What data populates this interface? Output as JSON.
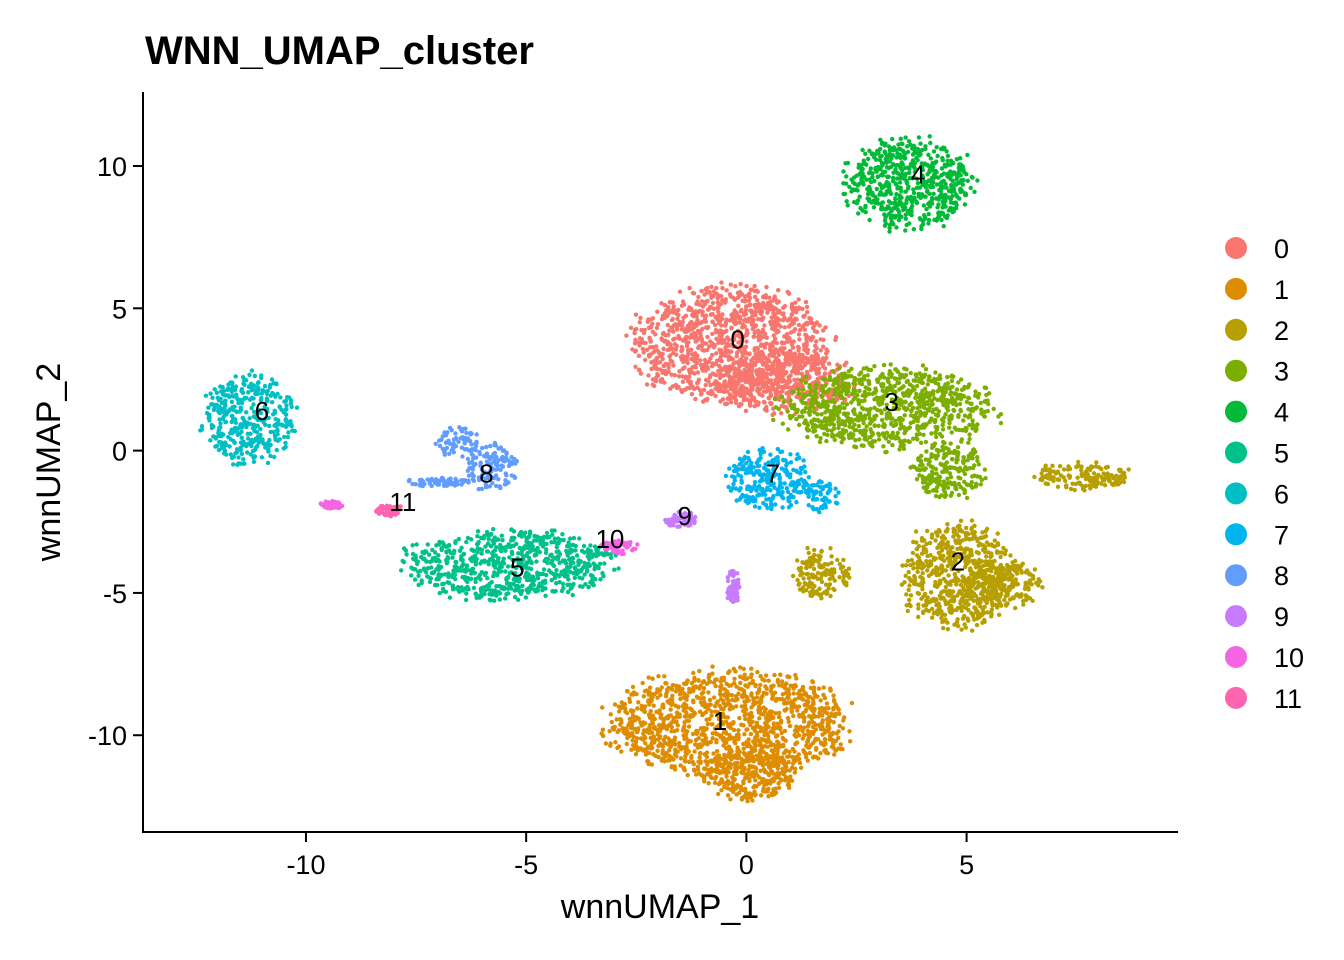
{
  "chart_data": {
    "type": "scatter",
    "title": "WNN_UMAP_cluster",
    "xlabel": "wnnUMAP_1",
    "ylabel": "wnnUMAP_2",
    "xlim": [
      -13.7,
      9.8
    ],
    "ylim": [
      -13.4,
      12.6
    ],
    "x_ticks": [
      -10,
      -5,
      0,
      5
    ],
    "y_ticks": [
      10,
      5,
      0,
      -5,
      -10
    ],
    "x_tick_labels": [
      "-10",
      "-5",
      "0",
      "5"
    ],
    "y_tick_labels": [
      "10",
      "5",
      "0",
      "-5",
      "-10"
    ],
    "grid": false,
    "legend_position": "right",
    "legend": [
      "0",
      "1",
      "2",
      "3",
      "4",
      "5",
      "6",
      "7",
      "8",
      "9",
      "10",
      "11"
    ],
    "colors": [
      "#F8766D",
      "#DE8C00",
      "#B79F00",
      "#7CAE00",
      "#00BA38",
      "#00C08B",
      "#00BFC4",
      "#00B4F0",
      "#619CFF",
      "#C77CFF",
      "#F564E3",
      "#FF64B0"
    ],
    "clusters": [
      {
        "name": "0",
        "label_x": -0.2,
        "label_y": 3.9,
        "blobs": [
          {
            "cx": -0.3,
            "cy": 3.7,
            "rx": 2.2,
            "ry": 2.0
          },
          {
            "cx": 0.9,
            "cy": 2.4,
            "rx": 1.5,
            "ry": 1.1
          }
        ]
      },
      {
        "name": "1",
        "label_x": -0.6,
        "label_y": -9.5,
        "blobs": [
          {
            "cx": -0.4,
            "cy": -9.6,
            "rx": 2.7,
            "ry": 1.8
          },
          {
            "cx": 0.1,
            "cy": -11.3,
            "rx": 1.0,
            "ry": 1.0
          }
        ]
      },
      {
        "name": "2",
        "label_x": 4.8,
        "label_y": -3.9,
        "blobs": [
          {
            "cx": 4.8,
            "cy": -4.4,
            "rx": 1.3,
            "ry": 1.8
          },
          {
            "cx": 5.8,
            "cy": -4.7,
            "rx": 0.9,
            "ry": 0.8
          },
          {
            "cx": 7.6,
            "cy": -0.9,
            "rx": 1.1,
            "ry": 0.5
          },
          {
            "cx": 1.7,
            "cy": -4.3,
            "rx": 0.6,
            "ry": 0.9
          }
        ]
      },
      {
        "name": "3",
        "label_x": 3.3,
        "label_y": 1.7,
        "blobs": [
          {
            "cx": 3.2,
            "cy": 1.5,
            "rx": 2.4,
            "ry": 1.4
          },
          {
            "cx": 4.6,
            "cy": -0.7,
            "rx": 0.8,
            "ry": 1.0
          }
        ]
      },
      {
        "name": "4",
        "label_x": 3.9,
        "label_y": 9.7,
        "blobs": [
          {
            "cx": 3.7,
            "cy": 9.4,
            "rx": 1.4,
            "ry": 1.6
          }
        ]
      },
      {
        "name": "5",
        "label_x": -5.2,
        "label_y": -4.1,
        "blobs": [
          {
            "cx": -5.4,
            "cy": -4.0,
            "rx": 2.3,
            "ry": 1.2
          }
        ]
      },
      {
        "name": "6",
        "label_x": -11.0,
        "label_y": 1.4,
        "blobs": [
          {
            "cx": -11.3,
            "cy": 1.1,
            "rx": 1.0,
            "ry": 1.5
          }
        ]
      },
      {
        "name": "7",
        "label_x": 0.6,
        "label_y": -0.8,
        "blobs": [
          {
            "cx": 0.5,
            "cy": -1.0,
            "rx": 0.9,
            "ry": 1.1
          },
          {
            "cx": 1.7,
            "cy": -1.6,
            "rx": 0.4,
            "ry": 0.5
          }
        ]
      },
      {
        "name": "8",
        "label_x": -5.9,
        "label_y": -0.8,
        "blobs": [
          {
            "cx": -5.8,
            "cy": -0.6,
            "rx": 0.6,
            "ry": 0.8
          },
          {
            "cx": -6.6,
            "cy": 0.3,
            "rx": 0.5,
            "ry": 0.5
          },
          {
            "cx": -7.0,
            "cy": -1.1,
            "rx": 0.7,
            "ry": 0.15
          }
        ]
      },
      {
        "name": "9",
        "label_x": -1.4,
        "label_y": -2.3,
        "blobs": [
          {
            "cx": -1.5,
            "cy": -2.4,
            "rx": 0.4,
            "ry": 0.3
          },
          {
            "cx": -0.3,
            "cy": -4.8,
            "rx": 0.15,
            "ry": 0.6
          }
        ]
      },
      {
        "name": "10",
        "label_x": -3.1,
        "label_y": -3.1,
        "blobs": [
          {
            "cx": -2.9,
            "cy": -3.4,
            "rx": 0.4,
            "ry": 0.25
          },
          {
            "cx": -9.4,
            "cy": -1.9,
            "rx": 0.25,
            "ry": 0.15
          }
        ]
      },
      {
        "name": "11",
        "label_x": -7.8,
        "label_y": -1.8,
        "blobs": [
          {
            "cx": -8.1,
            "cy": -2.1,
            "rx": 0.3,
            "ry": 0.2
          }
        ]
      }
    ]
  }
}
